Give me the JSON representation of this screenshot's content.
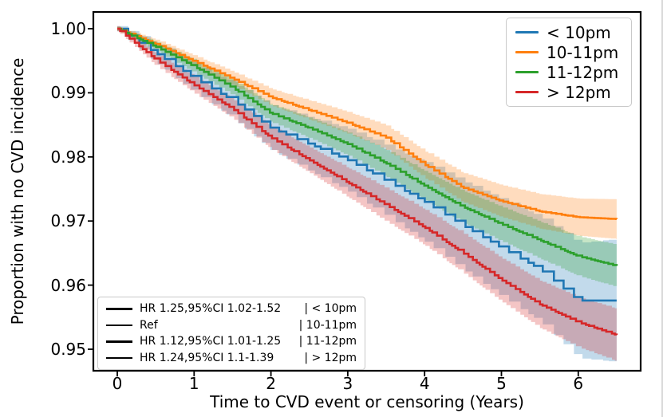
{
  "figure": {
    "xlabel": "Time to CVD event or censoring (Years)",
    "ylabel": "Proportion with no CVD incidence",
    "x_tick_labels": [
      "0",
      "1",
      "2",
      "3",
      "4",
      "5",
      "6"
    ],
    "y_tick_labels": [
      "1.00",
      "0.99",
      "0.98",
      "0.97",
      "0.96",
      "0.95"
    ],
    "background_color": "#ffffff",
    "spine_color": "#000000"
  },
  "legend": {
    "items": [
      {
        "label": "< 10pm",
        "color": "#1f77b4"
      },
      {
        "label": "10-11pm",
        "color": "#ff7f0e"
      },
      {
        "label": "11-12pm",
        "color": "#2ca02c"
      },
      {
        "label": "> 12pm",
        "color": "#d62728"
      }
    ]
  },
  "annotation": {
    "rows": [
      {
        "hr": "HR 1.25,95%CI 1.02-1.52",
        "group": "| < 10pm"
      },
      {
        "hr": "Ref",
        "group": "| 10-11pm"
      },
      {
        "hr": "HR 1.12,95%CI 1.01-1.25",
        "group": "| 11-12pm"
      },
      {
        "hr": "HR 1.24,95%CI 1.1-1.39",
        "group": "| > 12pm"
      }
    ]
  },
  "chart_data": {
    "type": "line",
    "subtype": "kaplan-meier-step-curves-with-confidence-bands",
    "title": "",
    "xlabel": "Time to CVD event or censoring (Years)",
    "ylabel": "Proportion with no CVD incidence",
    "x_ticks": [
      0,
      1,
      2,
      3,
      4,
      5,
      6
    ],
    "y_ticks": [
      1.0,
      0.99,
      0.98,
      0.97,
      0.96,
      0.95
    ],
    "xlim": [
      -0.31,
      6.81
    ],
    "ylim": [
      0.9466,
      1.0026
    ],
    "grid": false,
    "legend_position": "upper right",
    "t_years": [
      0,
      0.5,
      1,
      1.5,
      2,
      2.5,
      3,
      3.5,
      4,
      4.5,
      5,
      5.5,
      6,
      6.5
    ],
    "series": [
      {
        "name": "< 10pm",
        "color": "#1f77b4",
        "step_dt": 0.11,
        "seed": 11,
        "values": [
          1.0,
          0.9962,
          0.9923,
          0.9888,
          0.9845,
          0.982,
          0.9795,
          0.9763,
          0.973,
          0.9693,
          0.9658,
          0.9625,
          0.9576,
          0.9576
        ],
        "ci_half": [
          0.0004,
          0.0015,
          0.0022,
          0.0028,
          0.0035,
          0.0042,
          0.0049,
          0.0055,
          0.0062,
          0.0069,
          0.0076,
          0.0082,
          0.009,
          0.0096
        ]
      },
      {
        "name": "10-11pm",
        "color": "#ff7f0e",
        "step_dt": 0.055,
        "seed": 37,
        "values": [
          1.0,
          0.9976,
          0.9949,
          0.9922,
          0.9893,
          0.9873,
          0.9853,
          0.983,
          0.9788,
          0.9752,
          0.9731,
          0.9715,
          0.9706,
          0.9703
        ],
        "ci_half": [
          0.0003,
          0.0007,
          0.0009,
          0.0011,
          0.0013,
          0.0015,
          0.0017,
          0.0019,
          0.0021,
          0.0023,
          0.0025,
          0.0027,
          0.0029,
          0.0031
        ]
      },
      {
        "name": "11-12pm",
        "color": "#2ca02c",
        "step_dt": 0.055,
        "seed": 71,
        "values": [
          1.0,
          0.9972,
          0.9941,
          0.9908,
          0.9868,
          0.9845,
          0.982,
          0.979,
          0.9755,
          0.9722,
          0.9695,
          0.967,
          0.9645,
          0.963
        ],
        "ci_half": [
          0.0003,
          0.0007,
          0.001,
          0.0012,
          0.0014,
          0.0016,
          0.0018,
          0.0021,
          0.0023,
          0.0025,
          0.0027,
          0.0029,
          0.0031,
          0.0033
        ]
      },
      {
        "name": "> 12pm",
        "color": "#d62728",
        "step_dt": 0.055,
        "seed": 97,
        "values": [
          1.0,
          0.9952,
          0.9912,
          0.9875,
          0.983,
          0.9795,
          0.976,
          0.9725,
          0.969,
          0.965,
          0.9608,
          0.957,
          0.9542,
          0.9522
        ],
        "ci_half": [
          0.0004,
          0.001,
          0.0013,
          0.0015,
          0.0018,
          0.002,
          0.0023,
          0.0026,
          0.0028,
          0.0031,
          0.0034,
          0.0037,
          0.0039,
          0.0041
        ]
      }
    ],
    "hazard_ratios": [
      {
        "group": "< 10pm",
        "text": "HR 1.25,95%CI 1.02-1.52"
      },
      {
        "group": "10-11pm",
        "text": "Ref"
      },
      {
        "group": "11-12pm",
        "text": "HR 1.12,95%CI 1.01-1.25"
      },
      {
        "group": "> 12pm",
        "text": "HR 1.24,95%CI 1.1-1.39"
      }
    ]
  }
}
